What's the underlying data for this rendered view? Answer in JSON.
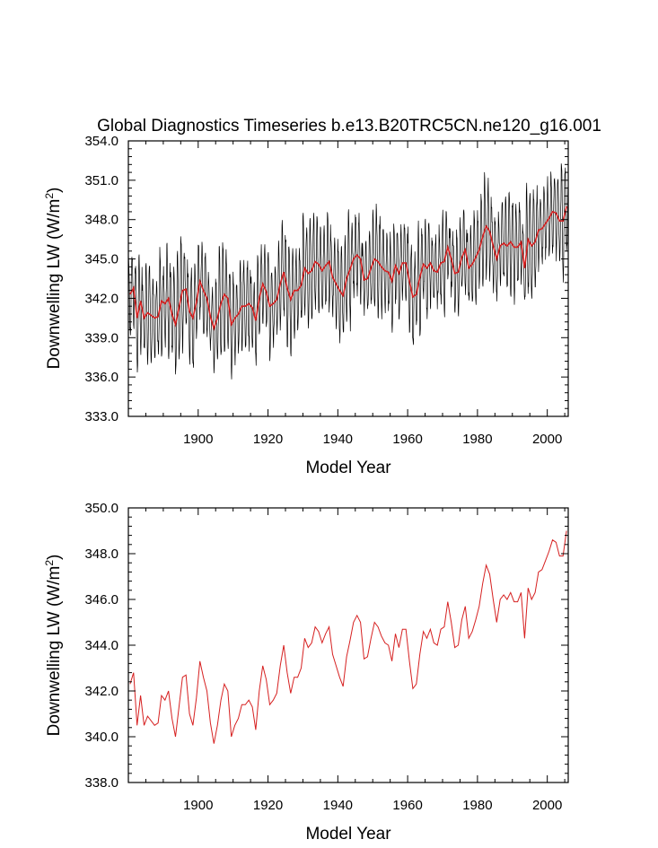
{
  "title": "Global Diagnostics Timeseries b.e13.B20TRC5CN.ne120_g16.001",
  "chart_data": [
    {
      "type": "line",
      "ylabel": "Downwelling LW (W/m",
      "ylabel_sup": "2",
      "ylabel_end": ")",
      "xlabel": "Model Year",
      "xlim": [
        1880,
        2006
      ],
      "ylim": [
        333.0,
        354.0
      ],
      "xticks": [
        1900,
        1920,
        1940,
        1960,
        1980,
        2000
      ],
      "yticks": [
        "333.0",
        "336.0",
        "339.0",
        "342.0",
        "345.0",
        "348.0",
        "351.0",
        "354.0"
      ],
      "series": [
        {
          "color": "#000000",
          "kind": "monthly",
          "seasonal_amplitude_approx": 3.0
        },
        {
          "color": "#d62020",
          "kind": "annual_mean",
          "source": "annual"
        }
      ]
    },
    {
      "type": "line",
      "ylabel": "Downwelling LW (W/m",
      "ylabel_sup": "2",
      "ylabel_end": ")",
      "xlabel": "Model Year",
      "xlim": [
        1880,
        2006
      ],
      "ylim": [
        338.0,
        350.0
      ],
      "xticks": [
        1900,
        1920,
        1940,
        1960,
        1980,
        2000
      ],
      "yticks": [
        "338.0",
        "340.0",
        "342.0",
        "344.0",
        "346.0",
        "348.0",
        "350.0"
      ],
      "series": [
        {
          "color": "#d62020",
          "kind": "annual_mean",
          "source": "annual"
        }
      ]
    }
  ],
  "annual": {
    "x": [
      1880,
      1881,
      1882,
      1883,
      1884,
      1885,
      1886,
      1887,
      1888,
      1889,
      1890,
      1891,
      1892,
      1893,
      1894,
      1895,
      1896,
      1897,
      1898,
      1899,
      1900,
      1901,
      1902,
      1903,
      1904,
      1905,
      1906,
      1907,
      1908,
      1909,
      1910,
      1911,
      1912,
      1913,
      1914,
      1915,
      1916,
      1917,
      1918,
      1919,
      1920,
      1921,
      1922,
      1923,
      1924,
      1925,
      1926,
      1927,
      1928,
      1929,
      1930,
      1931,
      1932,
      1933,
      1934,
      1935,
      1936,
      1937,
      1938,
      1939,
      1940,
      1941,
      1942,
      1943,
      1944,
      1945,
      1946,
      1947,
      1948,
      1949,
      1950,
      1951,
      1952,
      1953,
      1954,
      1955,
      1956,
      1957,
      1958,
      1959,
      1960,
      1961,
      1962,
      1963,
      1964,
      1965,
      1966,
      1967,
      1968,
      1969,
      1970,
      1971,
      1972,
      1973,
      1974,
      1975,
      1976,
      1977,
      1978,
      1979,
      1980,
      1981,
      1982,
      1983,
      1984,
      1985,
      1986,
      1987,
      1988,
      1989,
      1990,
      1991,
      1992,
      1993,
      1994,
      1995,
      1996,
      1997,
      1998,
      1999,
      2000,
      2001,
      2002,
      2003,
      2004,
      2005
    ],
    "y": [
      342.3,
      342.8,
      340.5,
      341.8,
      340.5,
      340.9,
      340.7,
      340.5,
      340.6,
      341.8,
      341.6,
      342.0,
      340.8,
      340.0,
      341.3,
      342.6,
      342.7,
      341.0,
      340.5,
      341.7,
      343.3,
      342.6,
      342.0,
      340.6,
      339.7,
      340.5,
      341.6,
      342.3,
      342.0,
      340.0,
      340.5,
      340.8,
      341.4,
      341.4,
      341.6,
      341.3,
      340.3,
      342.0,
      343.1,
      342.5,
      341.4,
      341.6,
      341.9,
      343.1,
      344.0,
      342.8,
      341.9,
      342.6,
      342.6,
      343.0,
      344.3,
      343.9,
      344.1,
      344.8,
      344.6,
      344.1,
      344.5,
      344.8,
      343.6,
      343.1,
      342.6,
      342.2,
      343.5,
      344.2,
      345.0,
      345.3,
      345.0,
      343.4,
      343.5,
      344.3,
      345.0,
      344.8,
      344.4,
      344.1,
      344.0,
      343.3,
      344.5,
      343.9,
      344.7,
      344.7,
      343.3,
      342.1,
      342.3,
      343.6,
      344.6,
      344.3,
      344.7,
      344.1,
      344.0,
      344.7,
      344.8,
      345.9,
      345.0,
      343.9,
      344.0,
      345.1,
      345.7,
      344.3,
      344.6,
      345.1,
      345.7,
      346.7,
      347.5,
      347.1,
      346.0,
      345.0,
      346.0,
      346.2,
      346.0,
      346.3,
      345.9,
      345.9,
      346.3,
      344.3,
      346.5,
      346.0,
      346.3,
      347.2,
      347.3,
      347.7,
      348.1,
      348.6,
      348.5,
      347.9,
      347.9,
      349.0
    ]
  }
}
